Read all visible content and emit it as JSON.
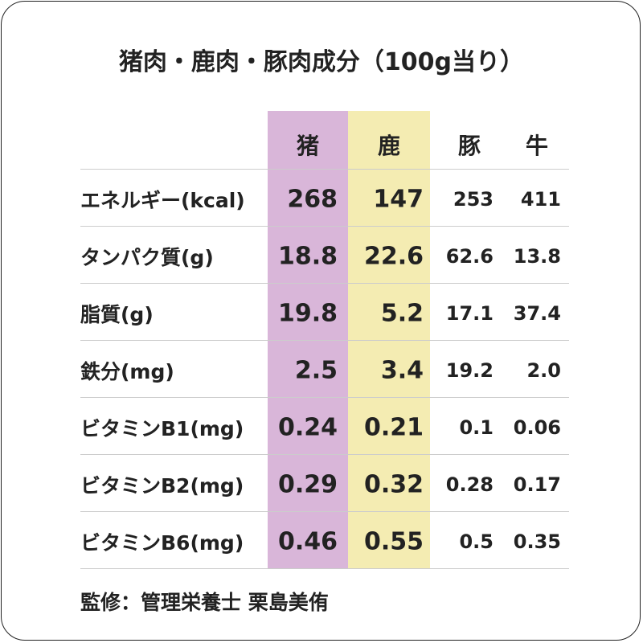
{
  "title": "猪肉・鹿肉・豚肉成分（100g当り）",
  "table": {
    "header": [
      "猪",
      "鹿",
      "豚",
      "牛"
    ],
    "rows": [
      {
        "label": "エネルギー(kcal)",
        "cells": [
          "268",
          "147",
          "253",
          "411"
        ]
      },
      {
        "label": "タンパク質(g)",
        "cells": [
          "18.8",
          "22.6",
          "62.6",
          "13.8"
        ]
      },
      {
        "label": "脂質(g)",
        "cells": [
          "19.8",
          "5.2",
          "17.1",
          "37.4"
        ]
      },
      {
        "label": "鉄分(mg)",
        "cells": [
          "2.5",
          "3.4",
          "19.2",
          "2.0"
        ]
      },
      {
        "label": "ビタミンB1(mg)",
        "cells": [
          "0.24",
          "0.21",
          "0.1",
          "0.06"
        ]
      },
      {
        "label": "ビタミンB2(mg)",
        "cells": [
          "0.29",
          "0.32",
          "0.28",
          "0.17"
        ]
      },
      {
        "label": "ビタミンB6(mg)",
        "cells": [
          "0.46",
          "0.55",
          "0.5",
          "0.35"
        ]
      }
    ]
  },
  "footer": "監修：管理栄養士 栗島美侑"
}
